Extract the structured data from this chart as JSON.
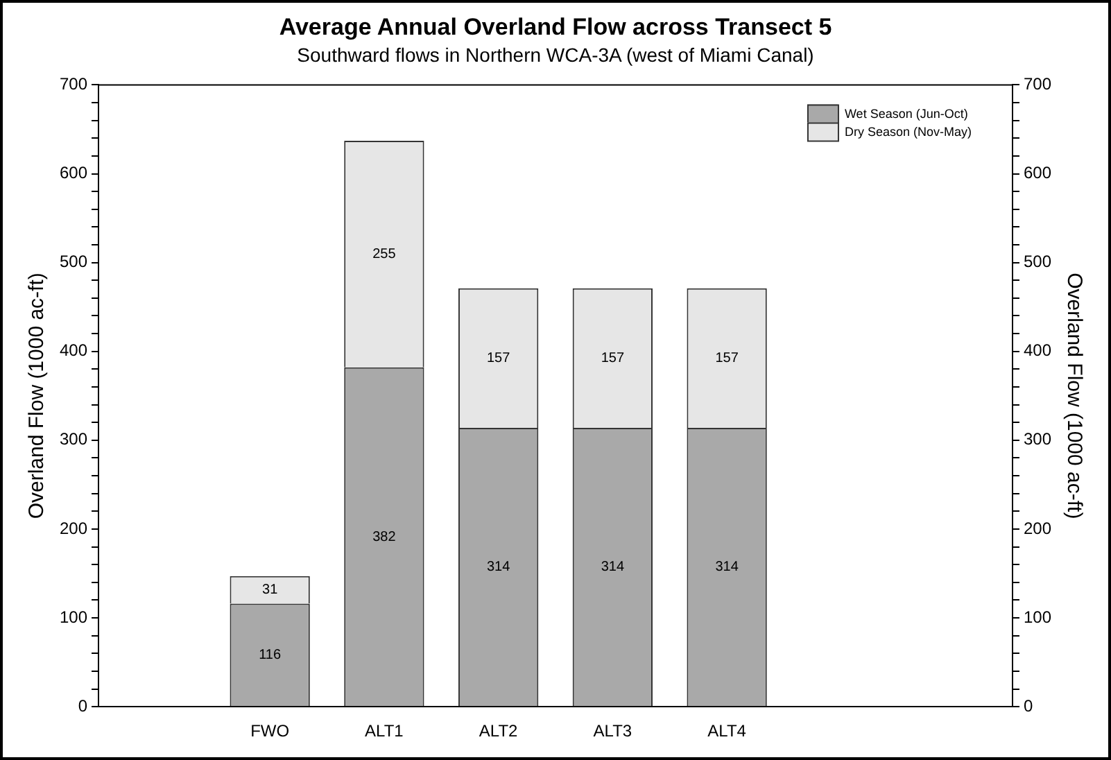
{
  "chart_data": {
    "type": "bar",
    "title": "Average Annual Overland Flow across Transect 5",
    "subtitle": "Southward flows in Northern WCA-3A (west of Miami Canal)",
    "ylabel": "Overland Flow (1000 ac-ft)",
    "y2label": "Overland Flow (1000 ac-ft)",
    "categories": [
      null,
      "FWO",
      "ALT1",
      "ALT2",
      "ALT3",
      "ALT4",
      null,
      null
    ],
    "stacked": true,
    "data_labels": true,
    "legend": "top right",
    "grid": false,
    "series": [
      {
        "name": "Wet Season (Jun-Oct)",
        "color": "#a9a9a9",
        "values": [
          null,
          116,
          382,
          314,
          314,
          314,
          null,
          null
        ]
      },
      {
        "name": "Dry Season (Nov-May)",
        "color": "#e6e6e6",
        "values": [
          null,
          31,
          255,
          157,
          157,
          157,
          null,
          null
        ]
      }
    ],
    "ylim": [
      0,
      700
    ],
    "yticks": [
      0,
      {
        "value": 20,
        "label": null
      },
      {
        "value": 40,
        "label": null
      },
      {
        "value": 60,
        "label": null
      },
      {
        "value": 80,
        "label": null
      },
      100,
      {
        "value": 120,
        "label": null
      },
      {
        "value": 140,
        "label": null
      },
      {
        "value": 160,
        "label": null
      },
      {
        "value": 180,
        "label": null
      },
      200,
      {
        "value": 220,
        "label": null
      },
      {
        "value": 240,
        "label": null
      },
      {
        "value": 260,
        "label": null
      },
      {
        "value": 280,
        "label": null
      },
      300,
      {
        "value": 320,
        "label": null
      },
      {
        "value": 340,
        "label": null
      },
      {
        "value": 360,
        "label": null
      },
      {
        "value": 380,
        "label": null
      },
      400,
      {
        "value": 420,
        "label": null
      },
      {
        "value": 440,
        "label": null
      },
      {
        "value": 460,
        "label": null
      },
      {
        "value": 480,
        "label": null
      },
      500,
      {
        "value": 520,
        "label": null
      },
      {
        "value": 540,
        "label": null
      },
      {
        "value": 560,
        "label": null
      },
      {
        "value": 580,
        "label": null
      },
      600,
      {
        "value": 620,
        "label": null
      },
      {
        "value": 640,
        "label": null
      },
      {
        "value": 660,
        "label": null
      },
      {
        "value": 680,
        "label": null
      },
      700
    ],
    "y2lim": [
      0,
      700
    ],
    "y2ticks": [
      0,
      {
        "value": 20,
        "label": null
      },
      {
        "value": 40,
        "label": null
      },
      {
        "value": 60,
        "label": null
      },
      {
        "value": 80,
        "label": null
      },
      100,
      {
        "value": 120,
        "label": null
      },
      {
        "value": 140,
        "label": null
      },
      {
        "value": 160,
        "label": null
      },
      {
        "value": 180,
        "label": null
      },
      200,
      {
        "value": 220,
        "label": null
      },
      {
        "value": 240,
        "label": null
      },
      {
        "value": 260,
        "label": null
      },
      {
        "value": 280,
        "label": null
      },
      300,
      {
        "value": 320,
        "label": null
      },
      {
        "value": 340,
        "label": null
      },
      {
        "value": 360,
        "label": null
      },
      {
        "value": 380,
        "label": null
      },
      400,
      {
        "value": 420,
        "label": null
      },
      {
        "value": 440,
        "label": null
      },
      {
        "value": 460,
        "label": null
      },
      {
        "value": 480,
        "label": null
      },
      500,
      {
        "value": 520,
        "label": null
      },
      {
        "value": 540,
        "label": null
      },
      {
        "value": 560,
        "label": null
      },
      {
        "value": 580,
        "label": null
      },
      600,
      {
        "value": 620,
        "label": null
      },
      {
        "value": 640,
        "label": null
      },
      {
        "value": 660,
        "label": null
      },
      {
        "value": 680,
        "label": null
      },
      700
    ]
  }
}
